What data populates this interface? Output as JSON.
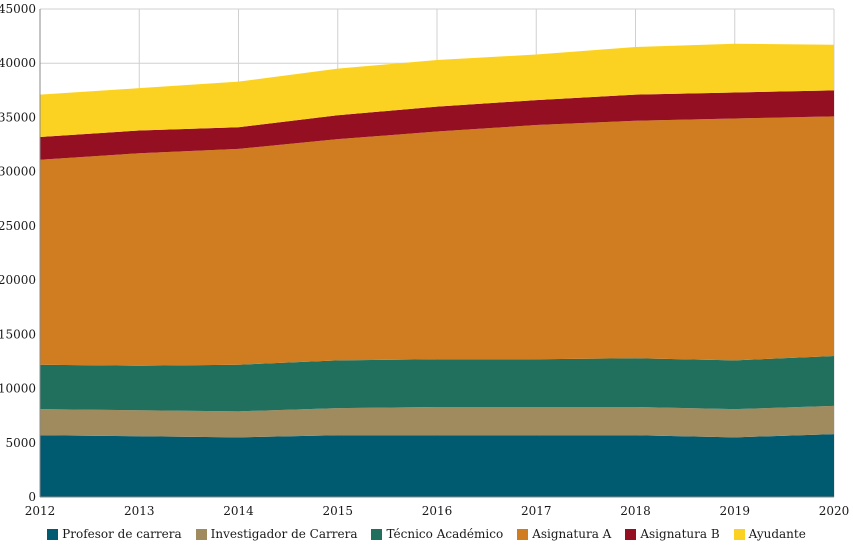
{
  "chart_data": {
    "type": "area",
    "stacked": true,
    "title": "",
    "xlabel": "",
    "ylabel": "",
    "x": [
      "2012",
      "2013",
      "2014",
      "2015",
      "2016",
      "2017",
      "2018",
      "2019",
      "2020"
    ],
    "ylim": [
      0,
      45000
    ],
    "yticks": [
      "0",
      "5000",
      "10000",
      "15000",
      "20000",
      "25000",
      "30000",
      "35000",
      "40000",
      "45000"
    ],
    "grid": true,
    "legend_position": "bottom",
    "series": [
      {
        "name": "Profesor de carrera",
        "color": "#005a70",
        "values": [
          5700,
          5600,
          5500,
          5700,
          5700,
          5700,
          5700,
          5500,
          5800
        ]
      },
      {
        "name": "Investigador de Carrera",
        "color": "#a08b5e",
        "values": [
          2400,
          2400,
          2400,
          2500,
          2600,
          2600,
          2600,
          2600,
          2600
        ]
      },
      {
        "name": "Técnico Académico",
        "color": "#21705e",
        "values": [
          4100,
          4100,
          4300,
          4400,
          4400,
          4400,
          4500,
          4500,
          4600
        ]
      },
      {
        "name": "Asignatura A",
        "color": "#d07c20",
        "values": [
          18900,
          19600,
          19900,
          20400,
          21000,
          21600,
          21900,
          22300,
          22100
        ]
      },
      {
        "name": "Asignatura B",
        "color": "#950f23",
        "values": [
          2100,
          2100,
          2000,
          2200,
          2300,
          2300,
          2400,
          2400,
          2400
        ]
      },
      {
        "name": "Ayudante",
        "color": "#fbd221",
        "values": [
          3900,
          3900,
          4200,
          4300,
          4300,
          4200,
          4400,
          4500,
          4200
        ]
      }
    ]
  }
}
